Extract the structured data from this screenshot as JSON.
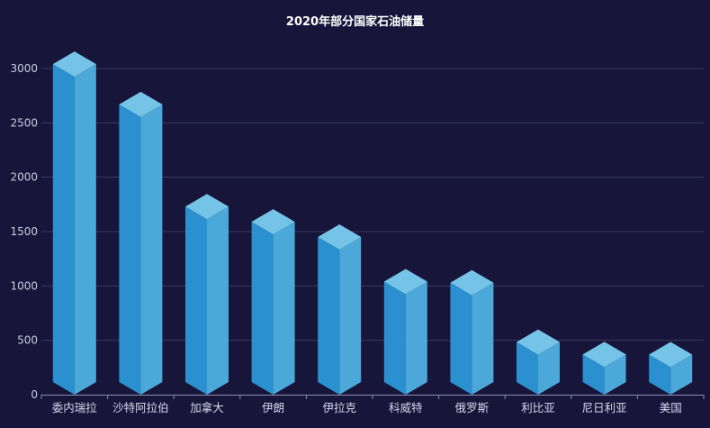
{
  "chart_data": {
    "type": "bar",
    "title": "2020年部分国家石油储量",
    "categories": [
      "委内瑞拉",
      "沙特阿拉伯",
      "加拿大",
      "伊朗",
      "伊拉克",
      "科威特",
      "俄罗斯",
      "利比亚",
      "尼日利亚",
      "美国"
    ],
    "values": [
      3040,
      2670,
      1730,
      1590,
      1450,
      1040,
      1030,
      484,
      370,
      369
    ],
    "ylim": [
      0,
      3000
    ],
    "yticks": [
      0,
      500,
      1000,
      1500,
      2000,
      2500,
      3000
    ],
    "xlabel": "",
    "ylabel": "",
    "grid": true,
    "style": "3d-bar",
    "colors": {
      "background": "#18153a",
      "front_face": "#2b90cf",
      "side_face": "#4ba8d8",
      "top_face": "#75c4e8",
      "grid": "#37385e",
      "axis": "#8a8fb0",
      "tick_text": "#c8cce0"
    }
  }
}
